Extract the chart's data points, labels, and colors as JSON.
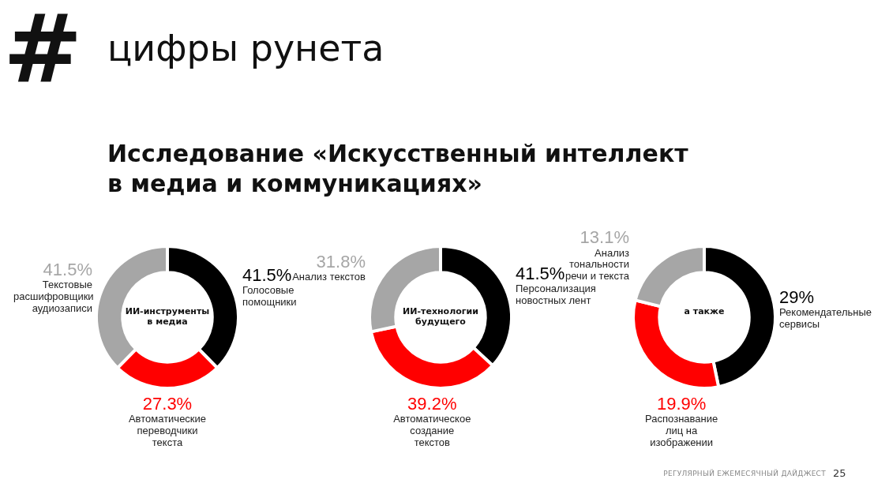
{
  "chart_data": [
    {
      "type": "other",
      "title": "Исследование «Искусственный интеллект в медиа и коммуникациях»",
      "annotations": [
        "#",
        "цифры рунета",
        "РЕГУЛЯРНЫЙ ЕЖЕМЕСЯЧНЫЙ ДАЙДЖЕСТ",
        "25"
      ]
    },
    {
      "type": "donut",
      "title": "ИИ-инструменты в медиа",
      "categories": [
        "Голосовые помощники",
        "Автоматические переводчики текста",
        "Текстовые расшифровщики аудиозаписи"
      ],
      "values": [
        41.5,
        27.3,
        41.5
      ],
      "value_labels": [
        "41.5%",
        "27.3%",
        "41.5%"
      ],
      "colors": [
        "#000000",
        "#ff0000",
        "#a6a6a6"
      ]
    },
    {
      "type": "donut",
      "title": "ИИ-технологии будущего",
      "categories": [
        "Персонализация новостных лент",
        "Автоматическое создание текстов",
        "Анализ текстов"
      ],
      "values": [
        41.5,
        39.2,
        31.8
      ],
      "value_labels": [
        "41.5%",
        "39.2%",
        "31.8%"
      ],
      "colors": [
        "#000000",
        "#ff0000",
        "#a6a6a6"
      ]
    },
    {
      "type": "donut",
      "title": "а также",
      "categories": [
        "Рекомендательные сервисы",
        "Распознавание лиц на изображении",
        "Анализ тональности речи и текста"
      ],
      "values": [
        29,
        19.9,
        13.1
      ],
      "value_labels": [
        "29%",
        "19.9%",
        "13.1%"
      ],
      "colors": [
        "#000000",
        "#ff0000",
        "#a6a6a6"
      ]
    }
  ]
}
